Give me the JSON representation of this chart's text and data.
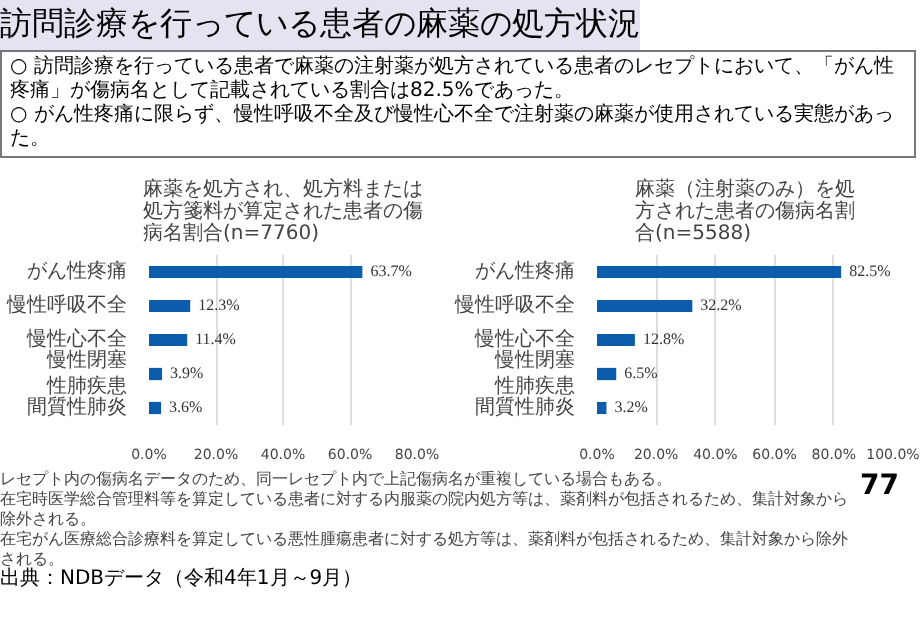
{
  "chart_data": [
    {
      "type": "bar",
      "orientation": "horizontal",
      "title": "麻薬を処方され、処方料または処方箋料が算定された患者の傷病名割合(n=7760)",
      "categories": [
        "がん性疼痛",
        "慢性呼吸不全",
        "慢性心不全",
        "慢性閉塞性肺疾患",
        "間質性肺炎"
      ],
      "values": [
        63.7,
        12.3,
        11.4,
        3.9,
        3.6
      ],
      "color": "#0b5cad",
      "value_labels": [
        "63.7%",
        "12.3%",
        "11.4%",
        "3.9%",
        "3.6%"
      ],
      "xlim": [
        0,
        80
      ],
      "xticks": [
        {
          "value": 0,
          "label": "0.0%"
        },
        {
          "value": 20,
          "label": "20.0%"
        },
        {
          "value": 40,
          "label": "40.0%"
        },
        {
          "value": 60,
          "label": "60.0%"
        },
        {
          "value": 80,
          "label": "80.0%"
        }
      ],
      "grid": "x",
      "annotations": [
        "訪問診療を行っている患者の麻薬の処方状況",
        "○ 訪問診療を行っている患者で麻薬の注射薬が処方されている患者のレセプトにおいて、「がん性疼痛」が傷病名として記載されている割合は82.5%であった。",
        "○ がん性疼痛に限らず、慢性呼吸不全及び慢性心不全で注射薬の麻薬が使用されている実態があった。",
        "出典：NDBデータ（令和4年1月～9月）"
      ]
    },
    {
      "type": "bar",
      "orientation": "horizontal",
      "title": "麻薬（注射薬のみ）を処方された患者の傷病名割合(n=5588)",
      "categories": [
        "がん性疼痛",
        "慢性呼吸不全",
        "慢性心不全",
        "慢性閉塞性肺疾患",
        "間質性肺炎"
      ],
      "values": [
        82.5,
        32.2,
        12.8,
        6.5,
        3.2
      ],
      "color": "#0b5cad",
      "value_labels": [
        "82.5%",
        "32.2%",
        "12.8%",
        "6.5%",
        "3.2%"
      ],
      "xlim": [
        0,
        100
      ],
      "xticks": [
        {
          "value": 0,
          "label": "0.0%"
        },
        {
          "value": 20,
          "label": "20.0%"
        },
        {
          "value": 40,
          "label": "40.0%"
        },
        {
          "value": 60,
          "label": "60.0%"
        },
        {
          "value": 80,
          "label": "80.0%"
        },
        {
          "value": 100,
          "label": "100.0%"
        }
      ],
      "grid": "x",
      "annotations": [
        "レセプト内の傷病名データのため、同一レセプト内で上記傷病名が重複している場合もある。",
        "在宅時医学総合管理料等を算定している患者に対する内服薬の院内処方等は、薬剤料が包括されるため、集計対象から除外される。",
        "在宅がん医療総合診療料を算定している悪性腫瘍患者に対する処方等は、薬剤料が包括されるため、集計対象から除外される。",
        "77"
      ]
    }
  ]
}
